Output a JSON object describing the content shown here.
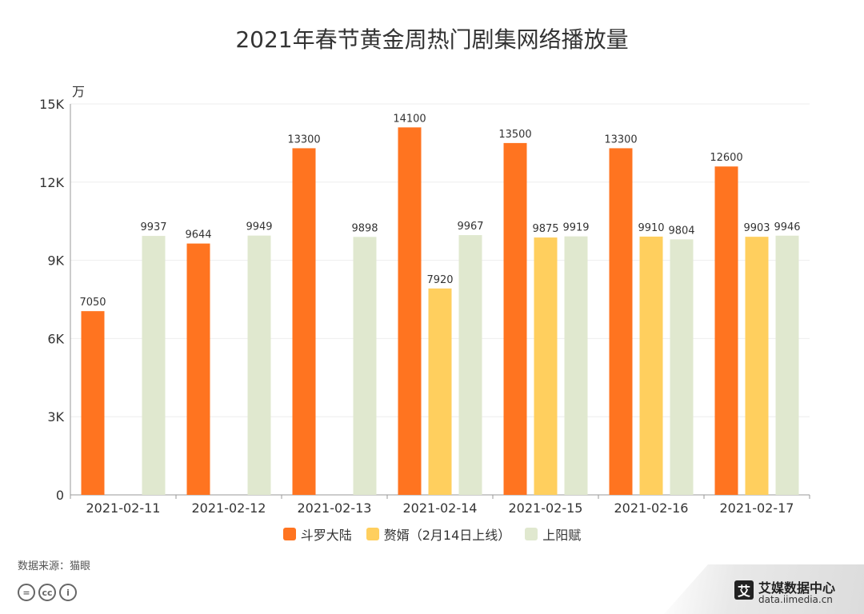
{
  "title": "2021年春节黄金周热门剧集网络播放量",
  "source": "数据来源：猫眼",
  "license_icons": [
    "=",
    "cc",
    "i"
  ],
  "brand": {
    "logo_char": "艾",
    "name": "艾媒数据中心",
    "url": "data.iimedia.cn"
  },
  "colors": {
    "series": [
      "#FF7420",
      "#FFCF5E",
      "#E0E8CF"
    ],
    "axis": "#999999",
    "grid": "#EEEEEE"
  },
  "chart_data": {
    "type": "bar",
    "title": "2021年春节黄金周热门剧集网络播放量",
    "unit_label": "万",
    "categories": [
      "2021-02-11",
      "2021-02-12",
      "2021-02-13",
      "2021-02-14",
      "2021-02-15",
      "2021-02-16",
      "2021-02-17"
    ],
    "ylim": [
      0,
      15000
    ],
    "yticks": [
      0,
      3000,
      6000,
      9000,
      12000,
      15000
    ],
    "ytick_labels": [
      "0",
      "3K",
      "6K",
      "9K",
      "12K",
      "15K"
    ],
    "grid": true,
    "legend_position": "bottom",
    "series": [
      {
        "name": "斗罗大陆",
        "values": [
          7050,
          9644,
          13300,
          14100,
          13500,
          13300,
          12600
        ]
      },
      {
        "name": "赘婿（2月14日上线）",
        "values": [
          null,
          null,
          null,
          7920,
          9875,
          9910,
          9903
        ]
      },
      {
        "name": "上阳赋",
        "values": [
          9937,
          9949,
          9898,
          9967,
          9919,
          9804,
          9946
        ]
      }
    ]
  }
}
